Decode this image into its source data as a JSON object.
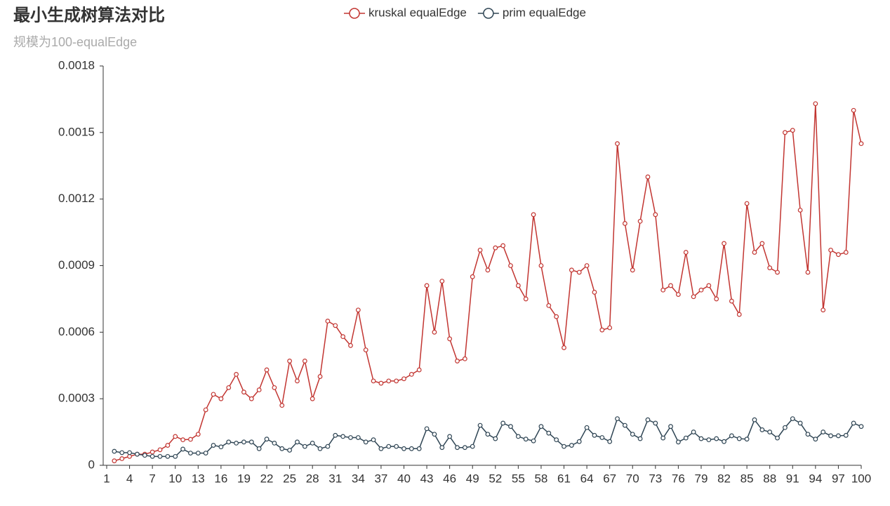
{
  "chart_data": {
    "type": "line",
    "title": "最小生成树算法对比",
    "subtitle": "规模为100-equalEdge",
    "categories": [
      "1",
      null,
      null,
      "4",
      null,
      null,
      "7",
      null,
      null,
      "10",
      null,
      null,
      "13",
      null,
      null,
      "16",
      null,
      null,
      "19",
      null,
      null,
      "22",
      null,
      null,
      "25",
      null,
      null,
      "28",
      null,
      null,
      "31",
      null,
      null,
      "34",
      null,
      null,
      "37",
      null,
      null,
      "40",
      null,
      null,
      "43",
      null,
      null,
      "46",
      null,
      null,
      "49",
      null,
      null,
      "52",
      null,
      null,
      "55",
      null,
      null,
      "58",
      null,
      null,
      "61",
      null,
      null,
      "64",
      null,
      null,
      "67",
      null,
      null,
      "70",
      null,
      null,
      "73",
      null,
      null,
      "76",
      null,
      null,
      "79",
      null,
      null,
      "82",
      null,
      null,
      "85",
      null,
      null,
      "88",
      null,
      null,
      "91",
      null,
      null,
      "94",
      null,
      null,
      "97",
      null,
      null,
      "100"
    ],
    "series": [
      {
        "name": "kruskal equalEdge",
        "color": "#c23531",
        "values": [
          null,
          2e-05,
          3e-05,
          4e-05,
          5e-05,
          5e-05,
          6e-05,
          7e-05,
          9e-05,
          0.00013,
          0.000115,
          0.000117,
          0.00014,
          0.00025,
          0.00032,
          0.0003,
          0.00035,
          0.00041,
          0.00033,
          0.0003,
          0.00034,
          0.00043,
          0.00035,
          0.00027,
          0.00047,
          0.00038,
          0.00047,
          0.0003,
          0.0004,
          0.00065,
          0.00063,
          0.00058,
          0.00054,
          0.0007,
          0.00052,
          0.00038,
          0.00037,
          0.00038,
          0.00038,
          0.00039,
          0.00041,
          0.00043,
          0.00081,
          0.0006,
          0.00083,
          0.00057,
          0.00047,
          0.00048,
          0.00085,
          0.00097,
          0.00088,
          0.00098,
          0.00099,
          0.0009,
          0.00081,
          0.00075,
          0.00113,
          0.0009,
          0.00072,
          0.00067,
          0.00053,
          0.00088,
          0.00087,
          0.0009,
          0.00078,
          0.00061,
          0.00062,
          0.00145,
          0.00109,
          0.00088,
          0.0011,
          0.0013,
          0.00113,
          0.00079,
          0.00081,
          0.00077,
          0.00096,
          0.00076,
          0.00079,
          0.00081,
          0.00075,
          0.001,
          0.00074,
          0.00068,
          0.00118,
          0.00096,
          0.001,
          0.00089,
          0.00087,
          0.0015,
          0.00151,
          0.00115,
          0.00087,
          0.00163,
          0.0007,
          0.00097,
          0.00095,
          0.00096,
          0.0016,
          0.00145
        ]
      },
      {
        "name": "prim equalEdge",
        "color": "#2f4554",
        "values": [
          null,
          6.3e-05,
          5.7e-05,
          5.7e-05,
          5e-05,
          4.5e-05,
          4e-05,
          4e-05,
          4e-05,
          4e-05,
          7.3e-05,
          5.5e-05,
          5.5e-05,
          5.5e-05,
          9e-05,
          8.3e-05,
          0.000105,
          0.0001,
          0.000105,
          0.000105,
          7.5e-05,
          0.000118,
          0.0001,
          7.5e-05,
          6.8e-05,
          0.000105,
          8.5e-05,
          0.0001,
          7.5e-05,
          8.5e-05,
          0.000135,
          0.00013,
          0.000125,
          0.000125,
          0.000105,
          0.000115,
          7.5e-05,
          8.5e-05,
          8.5e-05,
          7.5e-05,
          7.5e-05,
          7.5e-05,
          0.000165,
          0.00014,
          8e-05,
          0.00013,
          8e-05,
          8e-05,
          8.5e-05,
          0.00018,
          0.00014,
          0.00012,
          0.00019,
          0.000175,
          0.00013,
          0.000118,
          0.00011,
          0.000175,
          0.000145,
          0.000115,
          8.5e-05,
          9e-05,
          0.000107,
          0.00017,
          0.000135,
          0.000125,
          0.000107,
          0.00021,
          0.00018,
          0.00014,
          0.00012,
          0.000205,
          0.00019,
          0.000123,
          0.000175,
          0.000105,
          0.000123,
          0.00015,
          0.00012,
          0.000115,
          0.00012,
          0.000107,
          0.000133,
          0.00012,
          0.000118,
          0.000205,
          0.00016,
          0.00015,
          0.000123,
          0.00017,
          0.00021,
          0.00019,
          0.00014,
          0.000118,
          0.00015,
          0.000133,
          0.000133,
          0.000135,
          0.00019,
          0.000175
        ]
      }
    ],
    "ylim": [
      0,
      0.0018
    ],
    "yticks": [
      0,
      0.0003,
      0.0006,
      0.0009,
      0.0012,
      0.0015,
      0.0018
    ],
    "grid": false,
    "legend": "top"
  }
}
